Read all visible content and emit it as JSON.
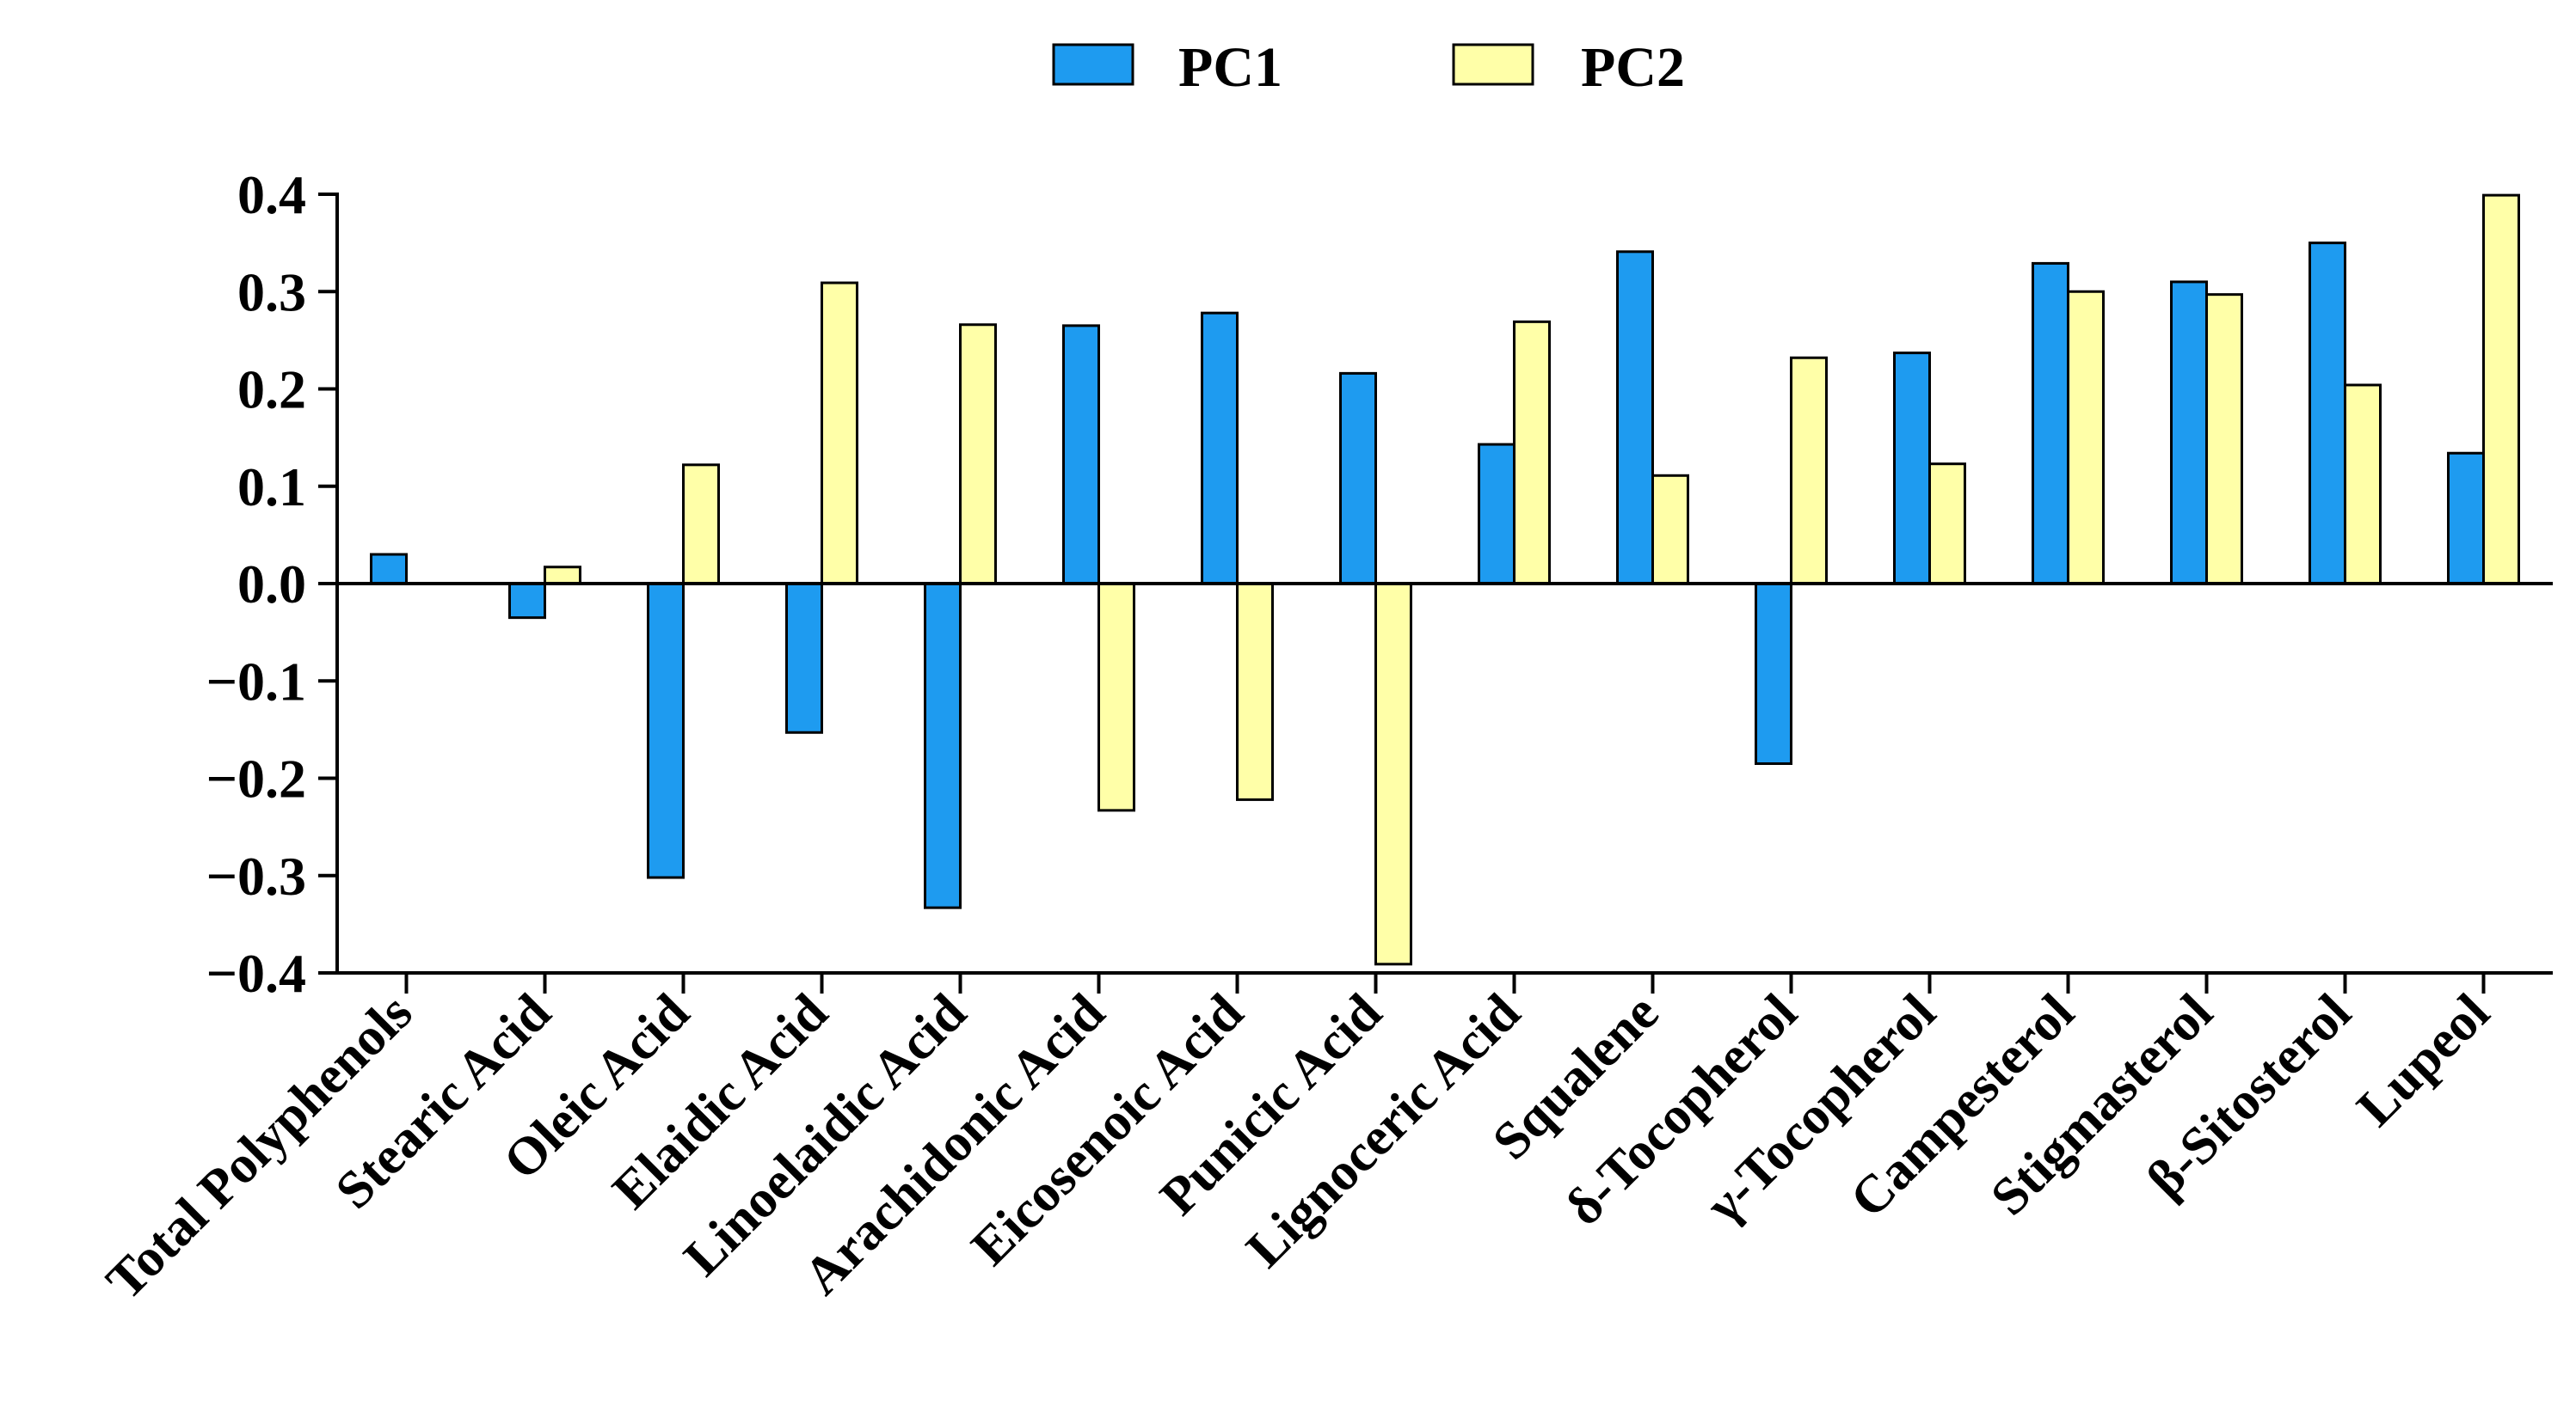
{
  "chart_data": {
    "type": "bar",
    "categories": [
      "Total Polyphenols",
      "Stearic Acid",
      "Oleic Acid",
      "Elaidic Acid",
      "Linoelaidic Acid",
      "Arachidonic Acid",
      "Eicosenoic Acid",
      "Punicic Acid",
      "Lignoceric Acid",
      "Squalene",
      "δ-Tocopherol",
      "γ-Tocopherol",
      "Campesterol",
      "Stigmasterol",
      "β-Sitosterol",
      "Lupeol"
    ],
    "series": [
      {
        "name": "PC1",
        "color": "#1E9BF0",
        "values": [
          0.03,
          -0.035,
          -0.302,
          -0.153,
          -0.333,
          0.265,
          0.278,
          0.216,
          0.143,
          0.341,
          -0.185,
          0.237,
          0.329,
          0.31,
          0.35,
          0.134
        ]
      },
      {
        "name": "PC2",
        "color": "#FFFFA8",
        "values": [
          0.0,
          0.017,
          0.122,
          0.309,
          0.266,
          -0.233,
          -0.222,
          -0.391,
          0.269,
          0.111,
          0.232,
          0.123,
          0.3,
          0.297,
          0.204,
          0.399
        ]
      }
    ],
    "ylim": [
      -0.4,
      0.4
    ],
    "yticks": [
      "0.4",
      "0.3",
      "0.2",
      "0.1",
      "0.0",
      "−0.1",
      "−0.2",
      "−0.3",
      "−0.4"
    ],
    "ytick_values": [
      0.4,
      0.3,
      0.2,
      0.1,
      0.0,
      -0.1,
      -0.2,
      -0.3,
      -0.4
    ],
    "xlabel": "",
    "ylabel": "",
    "title": "",
    "grid": false,
    "legend": "top-center"
  }
}
